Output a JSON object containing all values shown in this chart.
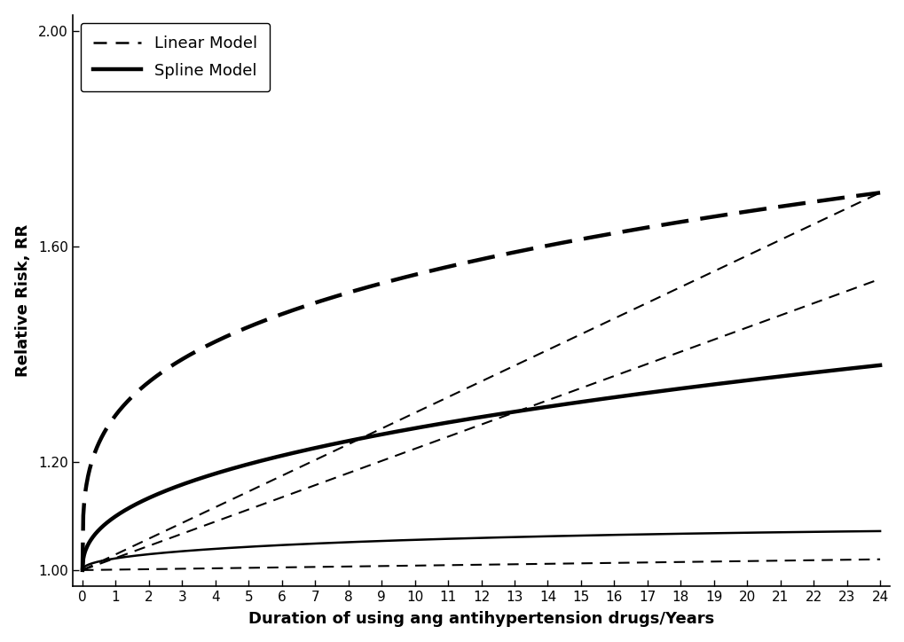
{
  "xlabel": "Duration of using ang antihypertension drugs/Years",
  "ylabel": "Relative Risk, RR",
  "xlim": [
    0,
    24
  ],
  "ylim": [
    0.97,
    2.03
  ],
  "yticks": [
    1.0,
    1.2,
    1.6,
    2.0
  ],
  "xticks": [
    0,
    1,
    2,
    3,
    4,
    5,
    6,
    7,
    8,
    9,
    10,
    11,
    12,
    13,
    14,
    15,
    16,
    17,
    18,
    19,
    20,
    21,
    22,
    23,
    24
  ],
  "legend_linear": "Linear Model",
  "legend_spline": "Spline Model",
  "background_color": "#ffffff",
  "line_color": "#000000"
}
